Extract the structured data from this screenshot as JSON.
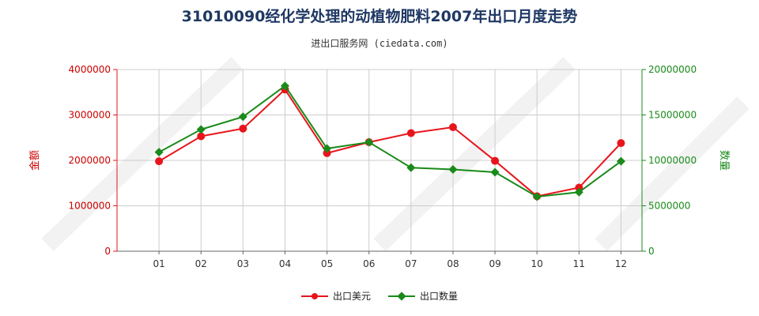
{
  "title": "31010090经化学处理的动植物肥料2007年出口月度走势",
  "subtitle": "进出口服务网 (ciedata.com)",
  "colors": {
    "usd": "#e8141b",
    "qty": "#1a8a1a",
    "grid": "#cccccc"
  },
  "chart_data": {
    "type": "line",
    "categories": [
      "01",
      "02",
      "03",
      "04",
      "05",
      "06",
      "07",
      "08",
      "09",
      "10",
      "11",
      "12"
    ],
    "y_left": {
      "label": "金额",
      "ylim": [
        0,
        4000000
      ],
      "ticks": [
        0,
        1000000,
        2000000,
        3000000,
        4000000
      ],
      "tick_labels": [
        "0",
        "1000000",
        "2000000",
        "3000000",
        "4000000"
      ]
    },
    "y_right": {
      "label": "数量",
      "ylim": [
        0,
        20000000
      ],
      "ticks": [
        0,
        5000000,
        10000000,
        15000000,
        20000000
      ],
      "tick_labels": [
        "0",
        "5000000",
        "10000000",
        "15000000",
        "20000000"
      ]
    },
    "series": [
      {
        "name": "出口美元",
        "axis": "left",
        "marker": "circle",
        "values": [
          1980000,
          2530000,
          2700000,
          3560000,
          2160000,
          2400000,
          2600000,
          2730000,
          1990000,
          1210000,
          1400000,
          2380000
        ]
      },
      {
        "name": "出口数量",
        "axis": "right",
        "marker": "diamond",
        "values": [
          10900000,
          13400000,
          14800000,
          18200000,
          11300000,
          12000000,
          9200000,
          9000000,
          8700000,
          6000000,
          6500000,
          9900000
        ]
      }
    ],
    "grid": true,
    "legend": "bottom-center"
  }
}
